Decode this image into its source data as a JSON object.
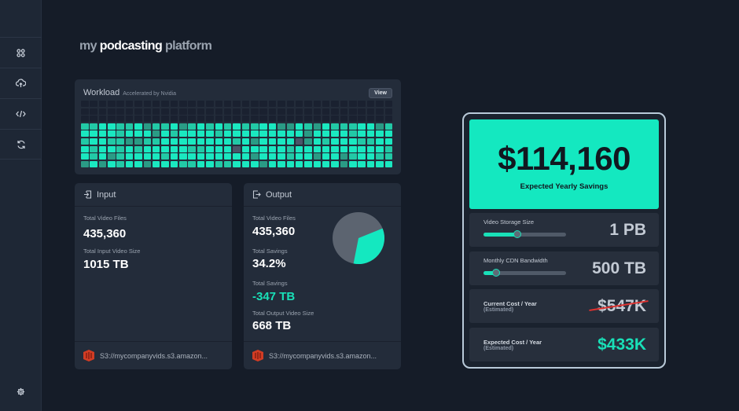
{
  "app": {
    "logo": {
      "part1": "my",
      "part2": "podcasting",
      "part3": "platform"
    }
  },
  "sidebar": {
    "items": [
      {
        "name": "dashboard"
      },
      {
        "name": "upload"
      },
      {
        "name": "code"
      },
      {
        "name": "sync"
      }
    ],
    "settings": "gear"
  },
  "workload": {
    "title": "Workload",
    "subtitle": "Accelerated by Nvidia",
    "view_label": "View"
  },
  "input": {
    "title": "Input",
    "stats": [
      {
        "label": "Total Video Files",
        "value": "435,360"
      },
      {
        "label": "Total Input Video Size",
        "value": "1015 TB"
      }
    ],
    "source": "S3://mycompanyvids.s3.amazon..."
  },
  "output": {
    "title": "Output",
    "stats": [
      {
        "label": "Total Video Files",
        "value": "435,360"
      },
      {
        "label": "Total Savings",
        "value": "34.2%"
      },
      {
        "label": "Total Savings",
        "value": "-347 TB"
      },
      {
        "label": "Total Output Video Size",
        "value": "668 TB"
      }
    ],
    "source": "S3://mycompanyvids.s3.amazon...",
    "pie_savings_percent": 34.2
  },
  "calculator": {
    "savings_value": "$114,160",
    "savings_caption": "Expected Yearly Savings",
    "storage": {
      "label": "Video Storage Size",
      "value": "1 PB",
      "slider_fraction": 0.41
    },
    "bandwidth": {
      "label": "Monthly CDN Bandwidth",
      "value": "500 TB",
      "slider_fraction": 0.15
    },
    "current": {
      "label": "Current Cost / Year",
      "note": "(Estimated)",
      "value": "$547K"
    },
    "expected": {
      "label": "Expected Cost / Year",
      "note": "(Estimated)",
      "value": "$433K"
    }
  },
  "colors": {
    "accent": "#14e8c0",
    "strike": "#e0322f",
    "background": "#151c28",
    "card": "#232c3a"
  }
}
